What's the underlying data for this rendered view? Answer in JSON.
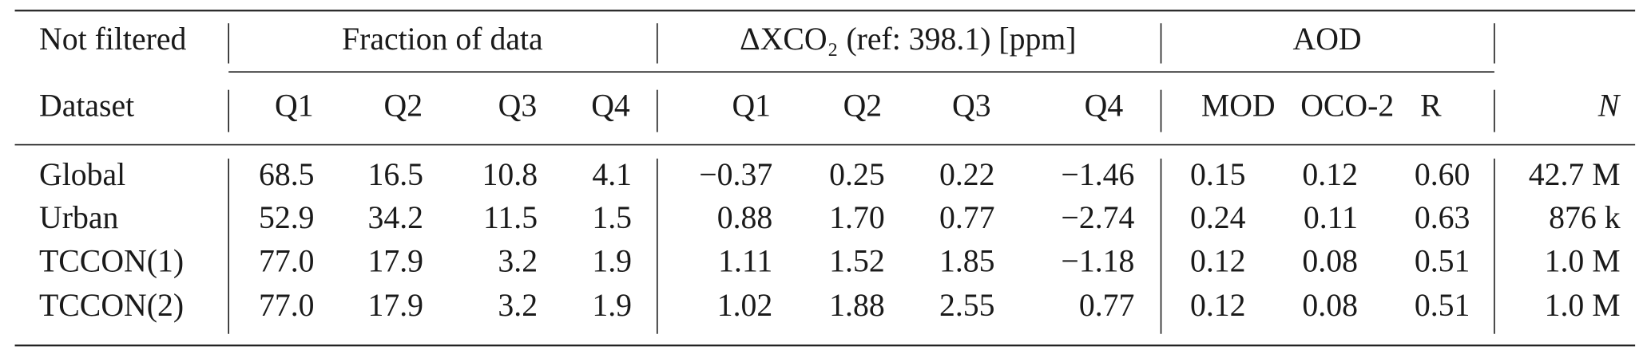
{
  "header": {
    "corner": "Not filtered",
    "groups": [
      "Fraction of data",
      "ΔXCO₂ (ref: 398.1) [ppm]",
      "AOD"
    ],
    "row_label": "Dataset",
    "columns": [
      "Q1",
      "Q2",
      "Q3",
      "Q4",
      "Q1",
      "Q2",
      "Q3",
      "Q4",
      "MOD",
      "OCO-2",
      "R",
      "N"
    ]
  },
  "table": {
    "rows": [
      [
        "Global",
        "68.5",
        "16.5",
        "10.8",
        "4.1",
        "−0.37",
        "0.25",
        "0.22",
        "−1.46",
        "0.15",
        "0.12",
        "0.60",
        "42.7 M"
      ],
      [
        "Urban",
        "52.9",
        "34.2",
        "11.5",
        "1.5",
        "0.88",
        "1.70",
        "0.77",
        "−2.74",
        "0.24",
        "0.11",
        "0.63",
        "876 k"
      ],
      [
        "TCCON(1)",
        "77.0",
        "17.9",
        "3.2",
        "1.9",
        "1.11",
        "1.52",
        "1.85",
        "−1.18",
        "0.12",
        "0.08",
        "0.51",
        "1.0 M"
      ],
      [
        "TCCON(2)",
        "77.0",
        "17.9",
        "3.2",
        "1.9",
        "1.02",
        "1.88",
        "2.55",
        "0.77",
        "0.12",
        "0.08",
        "0.51",
        "1.0 M"
      ]
    ]
  }
}
